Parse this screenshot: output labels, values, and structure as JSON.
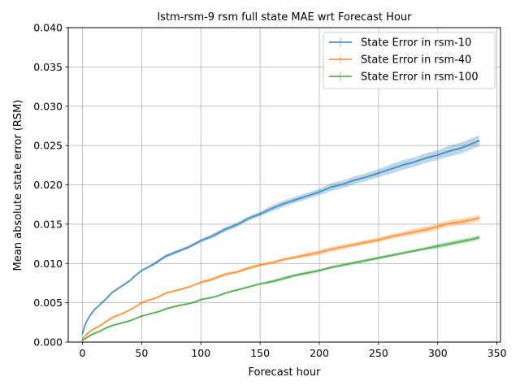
{
  "chart_data": {
    "type": "line",
    "title": "lstm-rsm-9 rsm full state MAE wrt Forecast Hour",
    "xlabel": "Forecast hour",
    "ylabel": "Mean absolute state error (RSM)",
    "xlim": [
      -12,
      353
    ],
    "ylim": [
      0,
      0.04
    ],
    "xticks": [
      0,
      50,
      100,
      150,
      200,
      250,
      300,
      350
    ],
    "xtick_labels": [
      "0",
      "50",
      "100",
      "150",
      "200",
      "250",
      "300",
      "350"
    ],
    "yticks": [
      0,
      0.005,
      0.01,
      0.015,
      0.02,
      0.025,
      0.03,
      0.035,
      0.04
    ],
    "ytick_labels": [
      "0.000",
      "0.005",
      "0.010",
      "0.015",
      "0.020",
      "0.025",
      "0.030",
      "0.035",
      "0.040"
    ],
    "grid": true,
    "legend_position": "top-right",
    "x": [
      0,
      3,
      6,
      10,
      15,
      20,
      25,
      30,
      35,
      40,
      45,
      50,
      55,
      60,
      65,
      70,
      80,
      90,
      95,
      100,
      110,
      115,
      120,
      130,
      140,
      150,
      160,
      170,
      180,
      190,
      200,
      210,
      220,
      230,
      240,
      250,
      260,
      270,
      280,
      290,
      300,
      310,
      320,
      330,
      335
    ],
    "series": [
      {
        "name": "State Error in rsm-10",
        "color": "#1f77b4",
        "values": [
          0.0011,
          0.0025,
          0.0033,
          0.0041,
          0.0048,
          0.0055,
          0.0063,
          0.0068,
          0.0073,
          0.0078,
          0.0085,
          0.0091,
          0.0095,
          0.0099,
          0.0104,
          0.0109,
          0.0115,
          0.0121,
          0.0125,
          0.0129,
          0.0135,
          0.0139,
          0.0143,
          0.0149,
          0.0157,
          0.0163,
          0.017,
          0.0176,
          0.0181,
          0.0186,
          0.0191,
          0.0197,
          0.0201,
          0.0206,
          0.021,
          0.0215,
          0.022,
          0.0225,
          0.0229,
          0.0234,
          0.0238,
          0.0243,
          0.0247,
          0.0253,
          0.0256
        ],
        "error": [
          0.0001,
          0.0001,
          0.0001,
          0.0001,
          0.0001,
          0.0001,
          0.0001,
          0.0001,
          0.0001,
          0.0001,
          0.0001,
          0.0001,
          0.0001,
          0.0002,
          0.0002,
          0.0002,
          0.0002,
          0.0002,
          0.0002,
          0.0002,
          0.0003,
          0.0003,
          0.0003,
          0.0003,
          0.0003,
          0.0003,
          0.0004,
          0.0004,
          0.0004,
          0.0004,
          0.0004,
          0.0005,
          0.0005,
          0.0005,
          0.0005,
          0.0005,
          0.0006,
          0.0006,
          0.0006,
          0.0006,
          0.0006,
          0.0007,
          0.0007,
          0.0007,
          0.0007
        ]
      },
      {
        "name": "State Error in rsm-40",
        "color": "#ff7f0e",
        "values": [
          0.0004,
          0.0009,
          0.0013,
          0.0017,
          0.0021,
          0.0026,
          0.0031,
          0.0034,
          0.0037,
          0.0041,
          0.0045,
          0.005,
          0.0053,
          0.0055,
          0.0058,
          0.0062,
          0.0066,
          0.007,
          0.0073,
          0.0076,
          0.008,
          0.0083,
          0.0086,
          0.0089,
          0.0094,
          0.0098,
          0.0101,
          0.0105,
          0.0108,
          0.0111,
          0.0114,
          0.0118,
          0.0121,
          0.0124,
          0.0127,
          0.013,
          0.0134,
          0.0137,
          0.014,
          0.0143,
          0.0147,
          0.0151,
          0.0153,
          0.0156,
          0.0158
        ],
        "error": [
          0.0001,
          0.0001,
          0.0001,
          0.0001,
          0.0001,
          0.0001,
          0.0001,
          0.0001,
          0.0001,
          0.0001,
          0.0001,
          0.0001,
          0.0001,
          0.0001,
          0.0001,
          0.0001,
          0.0001,
          0.0001,
          0.0001,
          0.0002,
          0.0002,
          0.0002,
          0.0002,
          0.0002,
          0.0002,
          0.0002,
          0.0002,
          0.0002,
          0.0002,
          0.0003,
          0.0003,
          0.0003,
          0.0003,
          0.0003,
          0.0003,
          0.0003,
          0.0003,
          0.0003,
          0.0004,
          0.0004,
          0.0004,
          0.0004,
          0.0004,
          0.0004,
          0.0004
        ]
      },
      {
        "name": "State Error in rsm-100",
        "color": "#2ca02c",
        "values": [
          0.0002,
          0.0005,
          0.0008,
          0.0011,
          0.0014,
          0.0018,
          0.0021,
          0.0023,
          0.0025,
          0.0027,
          0.003,
          0.0033,
          0.0035,
          0.0037,
          0.0039,
          0.0042,
          0.0046,
          0.0049,
          0.0051,
          0.0054,
          0.0057,
          0.0059,
          0.0062,
          0.0066,
          0.007,
          0.0074,
          0.0077,
          0.0081,
          0.0085,
          0.0088,
          0.0091,
          0.0095,
          0.0098,
          0.0101,
          0.0104,
          0.0107,
          0.011,
          0.0113,
          0.0116,
          0.0119,
          0.0122,
          0.0125,
          0.0128,
          0.0131,
          0.0133
        ],
        "error": [
          0.0001,
          0.0001,
          0.0001,
          0.0001,
          0.0001,
          0.0001,
          0.0001,
          0.0001,
          0.0001,
          0.0001,
          0.0001,
          0.0001,
          0.0001,
          0.0001,
          0.0001,
          0.0001,
          0.0001,
          0.0001,
          0.0001,
          0.0001,
          0.0001,
          0.0001,
          0.0001,
          0.0001,
          0.0001,
          0.0001,
          0.0002,
          0.0002,
          0.0002,
          0.0002,
          0.0002,
          0.0002,
          0.0002,
          0.0002,
          0.0002,
          0.0002,
          0.0002,
          0.0002,
          0.0002,
          0.0002,
          0.0003,
          0.0003,
          0.0003,
          0.0003,
          0.0003
        ]
      }
    ]
  }
}
